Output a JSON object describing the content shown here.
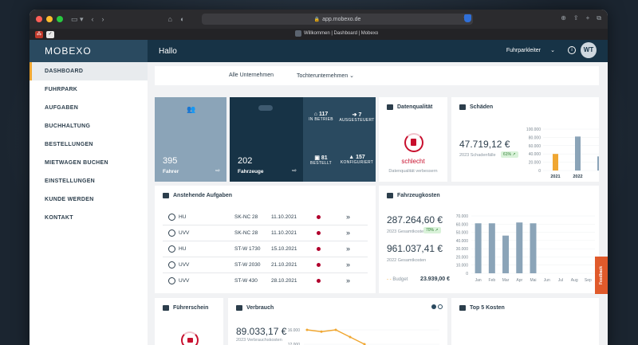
{
  "browser": {
    "url": "app.mobexo.de",
    "tab_title": "Willkommen | Dashboard | Mobexo"
  },
  "app": {
    "brand": "MOBEXO",
    "greeting": "Hallo",
    "role": "Fuhrparkleiter",
    "avatar_initials": "WT"
  },
  "sidebar": {
    "items": [
      {
        "label": "DASHBOARD",
        "active": true
      },
      {
        "label": "FUHRPARK"
      },
      {
        "label": "AUFGABEN"
      },
      {
        "label": "BUCHHALTUNG"
      },
      {
        "label": "BESTELLUNGEN"
      },
      {
        "label": "MIETWAGEN BUCHEN"
      },
      {
        "label": "EINSTELLUNGEN"
      },
      {
        "label": "KUNDE WERDEN"
      },
      {
        "label": "KONTAKT"
      }
    ]
  },
  "filters": {
    "company": "Alle Unternehmen",
    "subsidiary": "Tochterunternehmen"
  },
  "tiles": {
    "drivers": {
      "value": "395",
      "label": "Fahrer"
    },
    "vehicles": {
      "value": "202",
      "label": "Fahrzeuge"
    },
    "stats": [
      {
        "value": "117",
        "label": "IN BETRIEB"
      },
      {
        "value": "7",
        "label": "AUSGESTEUERT"
      },
      {
        "value": "81",
        "label": "BESTELLT"
      },
      {
        "value": "157",
        "label": "KONFIGURIERT"
      }
    ]
  },
  "data_quality": {
    "title": "Datenqualität",
    "status": "schlecht",
    "link": "Datenqualität verbessern"
  },
  "damages": {
    "title": "Schäden",
    "amount": "47.719,12 €",
    "note": "2023 Schadenfälle",
    "badge": "61% ↗"
  },
  "tasks": {
    "title": "Anstehende Aufgaben",
    "rows": [
      {
        "type": "HU",
        "plate": "SK-NC 28",
        "date": "11.10.2021"
      },
      {
        "type": "UVV",
        "plate": "SK-NC 28",
        "date": "11.10.2021"
      },
      {
        "type": "HU",
        "plate": "ST-W 1730",
        "date": "15.10.2021"
      },
      {
        "type": "UVV",
        "plate": "ST-W 2030",
        "date": "21.10.2021"
      },
      {
        "type": "UVV",
        "plate": "ST-W 430",
        "date": "28.10.2021"
      }
    ]
  },
  "vehicle_costs": {
    "title": "Fahrzeugkosten",
    "amount1": "287.264,60 €",
    "note1": "2023 Gesamtkosten",
    "badge": "70% ↗",
    "amount2": "961.037,41 €",
    "note2": "2022 Gesamtkosten",
    "budget_label": "Budget",
    "budget_value": "23.939,00 €"
  },
  "license_card": {
    "title": "Führerschein"
  },
  "consumption": {
    "title": "Verbrauch",
    "amount": "89.033,17 €",
    "note": "2023 Verbrauchskosten"
  },
  "top5": {
    "title": "Top 5 Kosten"
  },
  "feedback": "Feedback",
  "chart_data": [
    {
      "type": "bar",
      "title": "",
      "categories": [
        "2021",
        "2022"
      ],
      "values": [
        40000,
        82000
      ],
      "yticks": [
        "100.000",
        "80.000",
        "60.000",
        "40.000",
        "20.000",
        "0"
      ],
      "ylim": [
        0,
        100000
      ]
    },
    {
      "type": "bar",
      "title": "",
      "categories": [
        "Jan",
        "Feb",
        "Mar",
        "Apr",
        "Mai",
        "Jun",
        "Jul",
        "Aug",
        "Sep"
      ],
      "values": [
        61000,
        61000,
        46000,
        62000,
        61000,
        0,
        0,
        0,
        0
      ],
      "yticks": [
        "70.000",
        "60.000",
        "50.000",
        "40.000",
        "30.000",
        "20.000",
        "10.000",
        "0"
      ],
      "ylim": [
        0,
        70000
      ]
    },
    {
      "type": "line",
      "title": "",
      "yticks": [
        "16.000",
        "12.000"
      ],
      "values": [
        16000,
        15500,
        16000,
        14000,
        12000
      ],
      "ylim": [
        10000,
        17000
      ]
    }
  ]
}
